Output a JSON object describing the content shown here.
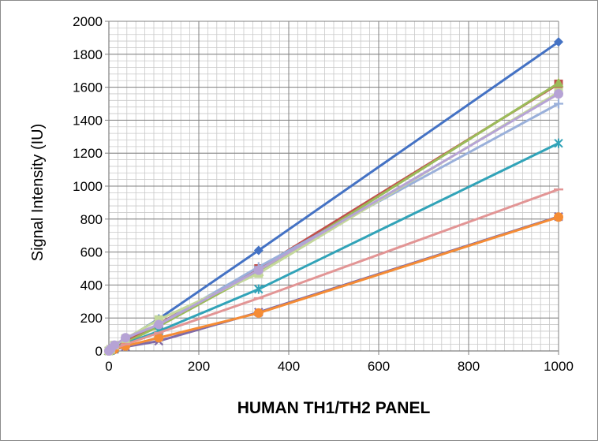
{
  "chart_data": {
    "type": "scatter",
    "title": "",
    "xlabel": "HUMAN TH1/TH2 PANEL",
    "ylabel": "Signal Intensity (IU)",
    "xlim": [
      0,
      1000
    ],
    "ylim": [
      0,
      2000
    ],
    "xticks": [
      0,
      200,
      400,
      600,
      800,
      1000
    ],
    "yticks": [
      0,
      200,
      400,
      600,
      800,
      1000,
      1200,
      1400,
      1600,
      1800,
      2000
    ],
    "grid": true,
    "legend": "none",
    "series": [
      {
        "color": "#4472c4",
        "marker": "diamond",
        "x": [
          0,
          4.1,
          12.3,
          37,
          111,
          333,
          1000
        ],
        "y": [
          0,
          8,
          25,
          70,
          195,
          610,
          1875
        ]
      },
      {
        "color": "#c0504d",
        "marker": "square",
        "x": [
          0,
          4.1,
          12.3,
          37,
          111,
          333,
          1000
        ],
        "y": [
          0,
          6,
          20,
          55,
          165,
          500,
          1620
        ]
      },
      {
        "color": "#9bbb59",
        "marker": "triangle",
        "x": [
          0,
          4.1,
          12.3,
          37,
          111,
          333,
          1000
        ],
        "y": [
          0,
          5,
          18,
          50,
          150,
          480,
          1625
        ]
      },
      {
        "color": "#7f6aa8",
        "marker": "x",
        "x": [
          0,
          4.1,
          12.3,
          37,
          111,
          333,
          1000
        ],
        "y": [
          0,
          3,
          10,
          25,
          60,
          235,
          815
        ]
      },
      {
        "color": "#31a3b8",
        "marker": "star",
        "x": [
          0,
          4.1,
          12.3,
          37,
          111,
          333,
          1000
        ],
        "y": [
          0,
          4,
          15,
          45,
          120,
          375,
          1260
        ]
      },
      {
        "color": "#f58c35",
        "marker": "circle",
        "x": [
          0,
          4.1,
          12.3,
          37,
          111,
          333,
          1000
        ],
        "y": [
          0,
          3,
          10,
          30,
          80,
          230,
          812
        ]
      },
      {
        "color": "#9ab0da",
        "marker": "plus",
        "x": [
          0,
          4.1,
          12.3,
          37,
          111,
          333,
          1000
        ],
        "y": [
          0,
          8,
          28,
          78,
          160,
          510,
          1500
        ]
      },
      {
        "color": "#e29595",
        "marker": "dash",
        "x": [
          0,
          4.1,
          12.3,
          37,
          111,
          333,
          1000
        ],
        "y": [
          0,
          5,
          15,
          40,
          110,
          320,
          980
        ]
      },
      {
        "color": "#c4d89b",
        "marker": "square",
        "x": [
          0,
          4.1,
          12.3,
          37,
          111,
          333,
          1000
        ],
        "y": [
          0,
          10,
          35,
          75,
          190,
          470,
          1570
        ]
      },
      {
        "color": "#b6a3d5",
        "marker": "circle",
        "x": [
          0,
          4.1,
          12.3,
          37,
          111,
          333,
          1000
        ],
        "y": [
          0,
          12,
          35,
          80,
          160,
          490,
          1560
        ]
      }
    ]
  }
}
